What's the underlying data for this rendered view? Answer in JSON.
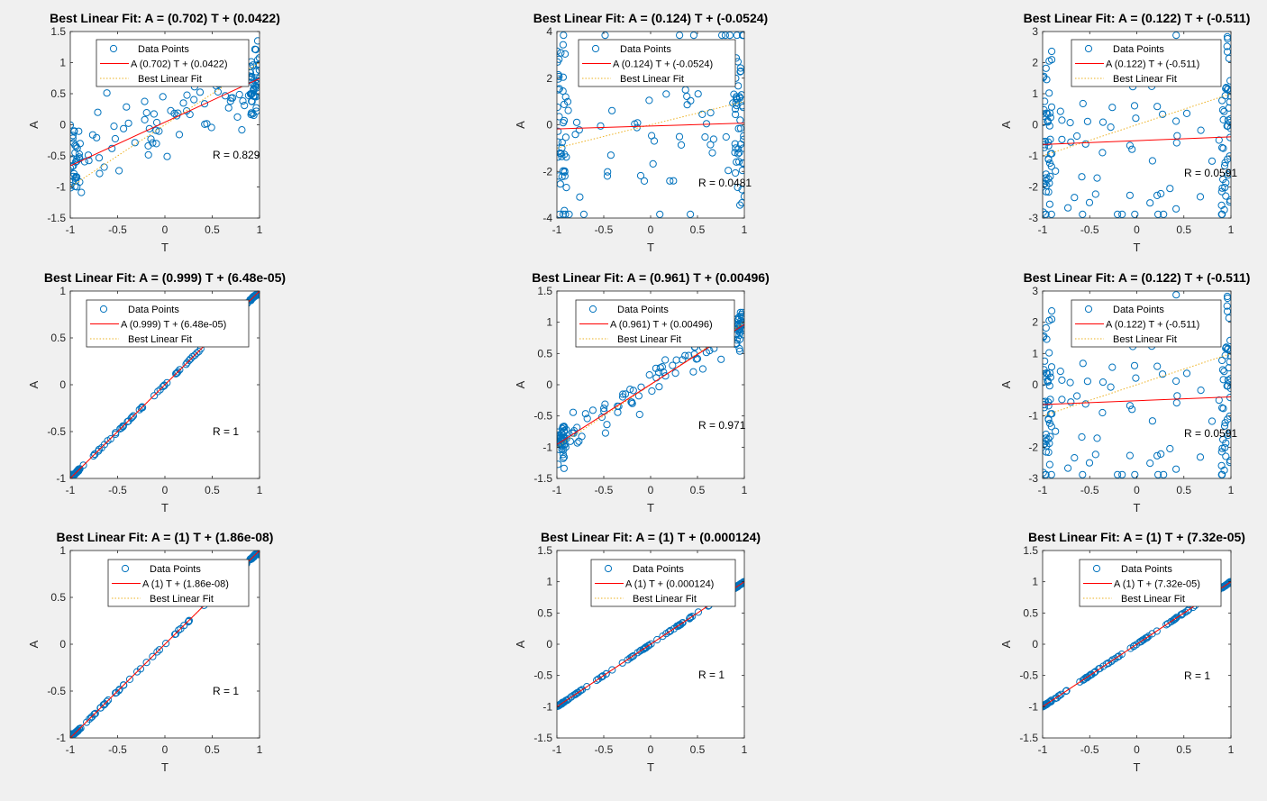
{
  "figure": {
    "background": "#f0f0f0",
    "colors": {
      "points": "#0072bd",
      "fit_line": "#ff0000",
      "best_fit": "#edb120",
      "axes": "#262626"
    },
    "legend_labels": {
      "data_points": "Data Points",
      "best_linear_fit": "Best Linear Fit"
    },
    "x_label": "T",
    "y_label": "A"
  },
  "chart_data": [
    {
      "type": "scatter",
      "title": "Best Linear Fit:  A = (0.702) T + (0.0422)",
      "fit_legend": "A (0.702) T + (0.0422)",
      "r_label": "R = 0.829",
      "slope": 0.702,
      "intercept": 0.0422,
      "r": 0.829,
      "n": 150,
      "seed": 11,
      "xlim": [
        -1,
        1
      ],
      "ylim": [
        -1.5,
        1.5
      ],
      "xticks": [
        "-1",
        "-0.5",
        "0",
        "0.5",
        "1"
      ],
      "yticks": [
        "-1.5",
        "-1",
        "-0.5",
        "0",
        "0.5",
        "1",
        "1.5"
      ],
      "ytick_values": [
        -1.5,
        -1,
        -0.5,
        0,
        0.5,
        1,
        1.5
      ],
      "xlabel": "T",
      "ylabel": "A"
    },
    {
      "type": "scatter",
      "title": "Best Linear Fit:  A = (0.124) T + (-0.0524)",
      "fit_legend": "A (0.124) T + (-0.0524)",
      "r_label": "R = 0.0481",
      "slope": 0.124,
      "intercept": -0.0524,
      "r": 0.0481,
      "n": 150,
      "seed": 23,
      "xlim": [
        -1,
        1
      ],
      "ylim": [
        -4,
        4
      ],
      "xticks": [
        "-1",
        "-0.5",
        "0",
        "0.5",
        "1"
      ],
      "yticks": [
        "-4",
        "-2",
        "0",
        "2",
        "4"
      ],
      "ytick_values": [
        -4,
        -2,
        0,
        2,
        4
      ],
      "xlabel": "T",
      "ylabel": "A"
    },
    {
      "type": "scatter",
      "title": "Best Linear Fit:  A = (0.122) T + (-0.511)",
      "fit_legend": "A (0.122) T + (-0.511)",
      "r_label": "R = 0.0591",
      "slope": 0.122,
      "intercept": -0.511,
      "r": 0.0591,
      "n": 150,
      "seed": 37,
      "xlim": [
        -1,
        1
      ],
      "ylim": [
        -3,
        3
      ],
      "xticks": [
        "-1",
        "-0.5",
        "0",
        "0.5",
        "1"
      ],
      "yticks": [
        "-3",
        "-2",
        "-1",
        "0",
        "1",
        "2",
        "3"
      ],
      "ytick_values": [
        -3,
        -2,
        -1,
        0,
        1,
        2,
        3
      ],
      "xlabel": "T",
      "ylabel": "A"
    },
    {
      "type": "scatter",
      "title": "Best Linear Fit:  A = (0.999) T + (6.48e-05)",
      "fit_legend": "A (0.999) T + (6.48e-05)",
      "r_label": "R = 1",
      "slope": 0.999,
      "intercept": 6.48e-05,
      "r": 1,
      "n": 150,
      "seed": 41,
      "xlim": [
        -1,
        1
      ],
      "ylim": [
        -1,
        1
      ],
      "xticks": [
        "-1",
        "-0.5",
        "0",
        "0.5",
        "1"
      ],
      "yticks": [
        "-1",
        "-0.5",
        "0",
        "0.5",
        "1"
      ],
      "ytick_values": [
        -1,
        -0.5,
        0,
        0.5,
        1
      ],
      "xlabel": "T",
      "ylabel": "A"
    },
    {
      "type": "scatter",
      "title": "Best Linear Fit:  A = (0.961) T + (0.00496)",
      "fit_legend": "A (0.961) T + (0.00496)",
      "r_label": "R = 0.971",
      "slope": 0.961,
      "intercept": 0.00496,
      "r": 0.971,
      "n": 150,
      "seed": 53,
      "xlim": [
        -1,
        1
      ],
      "ylim": [
        -1.5,
        1.5
      ],
      "xticks": [
        "-1",
        "-0.5",
        "0",
        "0.5",
        "1"
      ],
      "yticks": [
        "-1.5",
        "-1",
        "-0.5",
        "0",
        "0.5",
        "1",
        "1.5"
      ],
      "ytick_values": [
        -1.5,
        -1,
        -0.5,
        0,
        0.5,
        1,
        1.5
      ],
      "xlabel": "T",
      "ylabel": "A"
    },
    {
      "type": "scatter",
      "title": "Best Linear Fit:  A = (0.122) T + (-0.511)",
      "fit_legend": "A (0.122) T + (-0.511)",
      "r_label": "R = 0.0591",
      "slope": 0.122,
      "intercept": -0.511,
      "r": 0.0591,
      "n": 150,
      "seed": 37,
      "xlim": [
        -1,
        1
      ],
      "ylim": [
        -3,
        3
      ],
      "xticks": [
        "-1",
        "-0.5",
        "0",
        "0.5",
        "1"
      ],
      "yticks": [
        "-3",
        "-2",
        "-1",
        "0",
        "1",
        "2",
        "3"
      ],
      "ytick_values": [
        -3,
        -2,
        -1,
        0,
        1,
        2,
        3
      ],
      "xlabel": "T",
      "ylabel": "A"
    },
    {
      "type": "scatter",
      "title": "Best Linear Fit:  A = (1) T + (1.86e-08)",
      "fit_legend": "A (1) T + (1.86e-08)",
      "r_label": "R = 1",
      "slope": 1,
      "intercept": 1.86e-08,
      "r": 1,
      "n": 150,
      "seed": 61,
      "xlim": [
        -1,
        1
      ],
      "ylim": [
        -1,
        1
      ],
      "xticks": [
        "-1",
        "-0.5",
        "0",
        "0.5",
        "1"
      ],
      "yticks": [
        "-1",
        "-0.5",
        "0",
        "0.5",
        "1"
      ],
      "ytick_values": [
        -1,
        -0.5,
        0,
        0.5,
        1
      ],
      "xlabel": "T",
      "ylabel": "A"
    },
    {
      "type": "scatter",
      "title": "Best Linear Fit:  A = (1) T + (0.000124)",
      "fit_legend": "A (1) T + (0.000124)",
      "r_label": "R = 1",
      "slope": 1,
      "intercept": 0.000124,
      "r": 1,
      "n": 150,
      "seed": 71,
      "xlim": [
        -1,
        1
      ],
      "ylim": [
        -1.5,
        1.5
      ],
      "xticks": [
        "-1",
        "-0.5",
        "0",
        "0.5",
        "1"
      ],
      "yticks": [
        "-1.5",
        "-1",
        "-0.5",
        "0",
        "0.5",
        "1",
        "1.5"
      ],
      "ytick_values": [
        -1.5,
        -1,
        -0.5,
        0,
        0.5,
        1,
        1.5
      ],
      "xlabel": "T",
      "ylabel": "A"
    },
    {
      "type": "scatter",
      "title": "Best Linear Fit:  A = (1) T + (7.32e-05)",
      "fit_legend": "A (1) T + (7.32e-05)",
      "r_label": "R = 1",
      "slope": 1,
      "intercept": 7.32e-05,
      "r": 1,
      "n": 150,
      "seed": 83,
      "xlim": [
        -1,
        1
      ],
      "ylim": [
        -1.5,
        1.5
      ],
      "xticks": [
        "-1",
        "-0.5",
        "0",
        "0.5",
        "1"
      ],
      "yticks": [
        "-1.5",
        "-1",
        "-0.5",
        "0",
        "0.5",
        "1",
        "1.5"
      ],
      "ytick_values": [
        -1.5,
        -1,
        -0.5,
        0,
        0.5,
        1,
        1.5
      ],
      "xlabel": "T",
      "ylabel": "A"
    }
  ]
}
